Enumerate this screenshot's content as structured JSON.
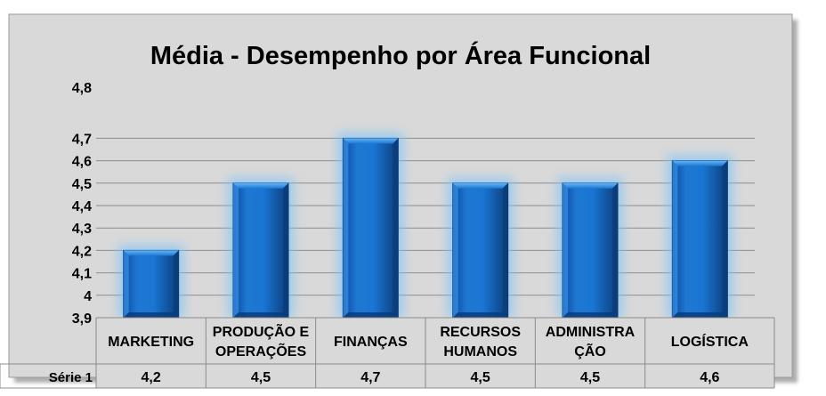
{
  "chart_data": {
    "type": "bar",
    "title": "Média - Desempenho por Área Funcional",
    "categories": [
      [
        "MARKETING"
      ],
      [
        "PRODUÇÃO E",
        "OPERAÇÕES"
      ],
      [
        "FINANÇAS"
      ],
      [
        "RECURSOS",
        "HUMANOS"
      ],
      [
        "ADMINISTRA",
        "ÇÃO"
      ],
      [
        "LOGÍSTICA"
      ]
    ],
    "series": [
      {
        "name": "Série 1",
        "values": [
          4.2,
          4.5,
          4.7,
          4.5,
          4.5,
          4.6
        ]
      }
    ],
    "value_labels": [
      "4,2",
      "4,5",
      "4,7",
      "4,5",
      "4,5",
      "4,6"
    ],
    "y_ticks": [
      "3,9",
      "4",
      "4,1",
      "4,2",
      "4,3",
      "4,4",
      "4,5",
      "4,6",
      "4,7",
      "4,8"
    ],
    "ylim": [
      3.9,
      4.8
    ],
    "grid": true,
    "data_table": true,
    "colors": {
      "bar": "#1565C0",
      "bar_light": "#42A5F5",
      "bar_dark": "#0B3C7A",
      "glow": "#7EC3F7",
      "plot_bg": "#D9D9D9",
      "grid": "#8C8C8C"
    }
  }
}
